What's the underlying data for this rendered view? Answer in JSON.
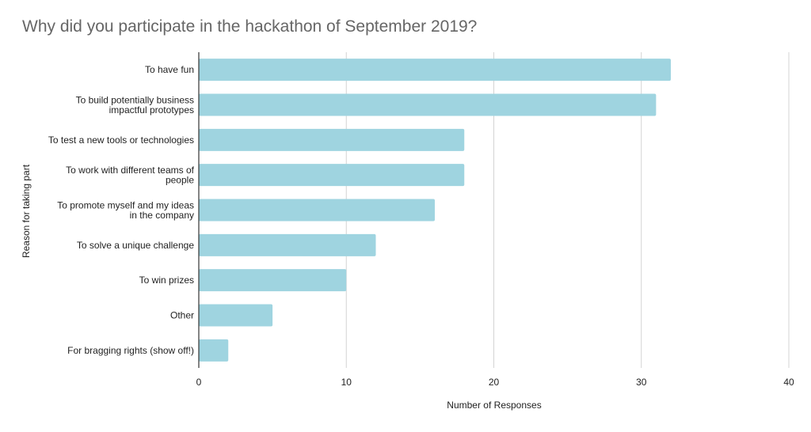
{
  "chart_data": {
    "type": "bar",
    "orientation": "horizontal",
    "title": "Why did you participate in the hackathon of September 2019?",
    "xlabel": "Number of Responses",
    "ylabel": "Reason for taking part",
    "categories": [
      [
        "To have fun"
      ],
      [
        "To build potentially business",
        "impactful prototypes"
      ],
      [
        "To test a new tools or technologies"
      ],
      [
        "To work with different teams of",
        "people"
      ],
      [
        "To promote myself and my ideas",
        "in the company"
      ],
      [
        "To solve a unique challenge"
      ],
      [
        "To win prizes"
      ],
      [
        "Other"
      ],
      [
        "For bragging rights (show off!)"
      ]
    ],
    "values": [
      32,
      31,
      18,
      18,
      16,
      12,
      10,
      5,
      2
    ],
    "xlim": [
      0,
      40
    ],
    "xticks": [
      "0",
      "10",
      "20",
      "30",
      "40"
    ],
    "grid": true,
    "bar_color": "#9fd4e0",
    "grid_color": "#d4d4d4",
    "axis_color": "#333333"
  }
}
